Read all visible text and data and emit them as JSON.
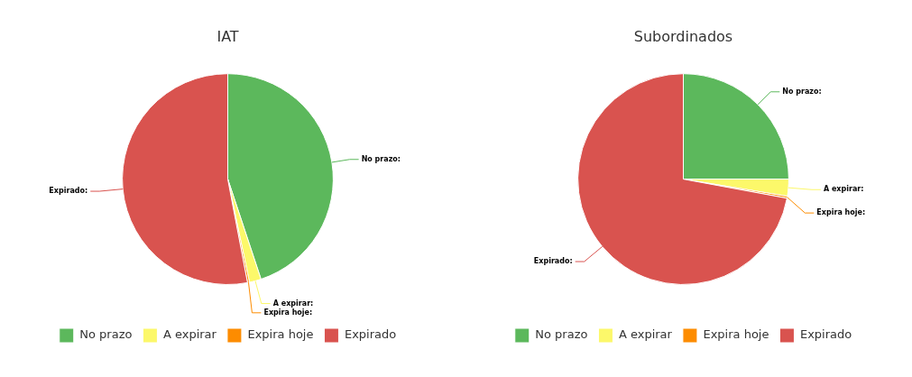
{
  "chart_data": [
    {
      "type": "pie",
      "title": "IAT",
      "categories": [
        "No prazo",
        "A expirar",
        "Expira hoje",
        "Expirado"
      ],
      "values": [
        44.9,
        1.8,
        0.3,
        53.0
      ],
      "colors": [
        "#5cb85c",
        "#fcf86a",
        "#fd8c00",
        "#d9534f"
      ],
      "value_labels": [
        "No prazo:",
        "A expirar:",
        "Expira hoje:",
        "Expirado:"
      ],
      "legend": "bottom"
    },
    {
      "type": "pie",
      "title": "Subordinados",
      "categories": [
        "No prazo",
        "A expirar",
        "Expira hoje",
        "Expirado"
      ],
      "values": [
        25.0,
        2.6,
        0.3,
        72.1
      ],
      "colors": [
        "#5cb85c",
        "#fcf86a",
        "#fd8c00",
        "#d9534f"
      ],
      "value_labels": [
        "No prazo:",
        "A expirar:",
        "Expira hoje:",
        "Expirado:"
      ],
      "legend": "bottom"
    }
  ]
}
